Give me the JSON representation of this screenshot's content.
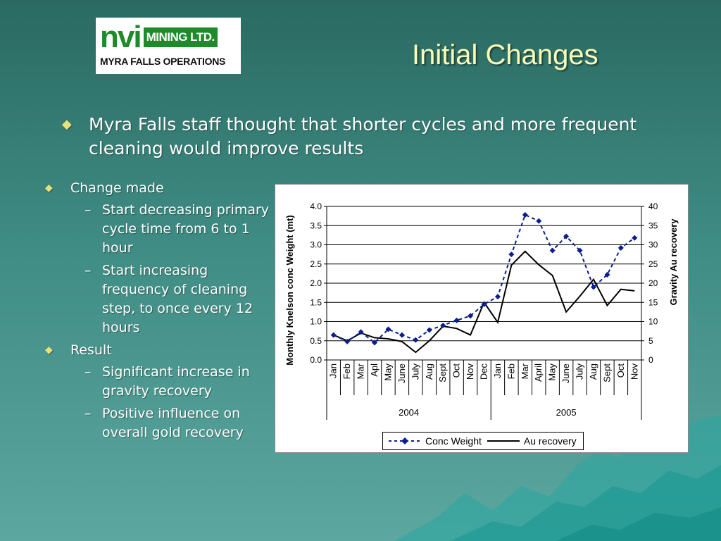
{
  "logo": {
    "brand": "nvi",
    "name": "MINING LTD.",
    "sub": "MYRA FALLS OPERATIONS"
  },
  "title": "Initial Changes",
  "main_bullet": "Myra Falls staff thought that shorter cycles and more frequent cleaning would improve results",
  "side_bullets": [
    {
      "text": "Change made",
      "subs": [
        "Start decreasing primary cycle time from 6 to 1 hour",
        "Start increasing frequency of cleaning step, to once every 12 hours"
      ]
    },
    {
      "text": "Result",
      "subs": [
        "Significant increase in gravity recovery",
        "Positive influence on overall gold recovery"
      ]
    }
  ],
  "colors": {
    "title": "#fbfbb8",
    "bullet": "#e8e07a",
    "conc": "#0b1e8c",
    "au": "#000000"
  },
  "chart_data": {
    "type": "line",
    "categories": [
      "Jan",
      "Feb",
      "Mar",
      "Apl",
      "May",
      "June",
      "July",
      "Aug",
      "Sept",
      "Oct",
      "Nov",
      "Dec",
      "Jan",
      "Feb",
      "Mar",
      "April",
      "May",
      "June",
      "July",
      "Aug",
      "Sept",
      "Oct",
      "Nov"
    ],
    "groups": [
      {
        "label": "2004",
        "count": 12
      },
      {
        "label": "2005",
        "count": 11
      }
    ],
    "ylabel": "Monthly Knelson conc Weight (mt)",
    "y2label": "Gravity Au recovery",
    "ylim": [
      0,
      4
    ],
    "y2lim": [
      0,
      40
    ],
    "yticks": [
      "0.0",
      "0.5",
      "1.0",
      "1.5",
      "2.0",
      "2.5",
      "3.0",
      "3.5",
      "4.0"
    ],
    "y2ticks": [
      "0",
      "5",
      "10",
      "15",
      "20",
      "25",
      "30",
      "35",
      "40"
    ],
    "grid": true,
    "legend": "bottom",
    "series": [
      {
        "name": "Conc Weight",
        "axis": "left",
        "style": "dashed-diamond",
        "values": [
          0.65,
          0.48,
          0.73,
          0.45,
          0.8,
          0.65,
          0.52,
          0.78,
          0.9,
          1.03,
          1.15,
          1.45,
          1.65,
          2.75,
          3.78,
          3.62,
          2.85,
          3.22,
          2.85,
          1.9,
          2.22,
          2.92,
          3.18
        ]
      },
      {
        "name": "Au recovery",
        "axis": "right",
        "style": "solid",
        "values": [
          6.5,
          5.0,
          7.0,
          5.8,
          5.5,
          4.8,
          2.0,
          5.0,
          8.8,
          8.2,
          6.5,
          15.0,
          9.8,
          24.7,
          28.3,
          24.8,
          22.0,
          12.5,
          16.6,
          21.0,
          14.2,
          18.4,
          18.0
        ]
      }
    ]
  }
}
